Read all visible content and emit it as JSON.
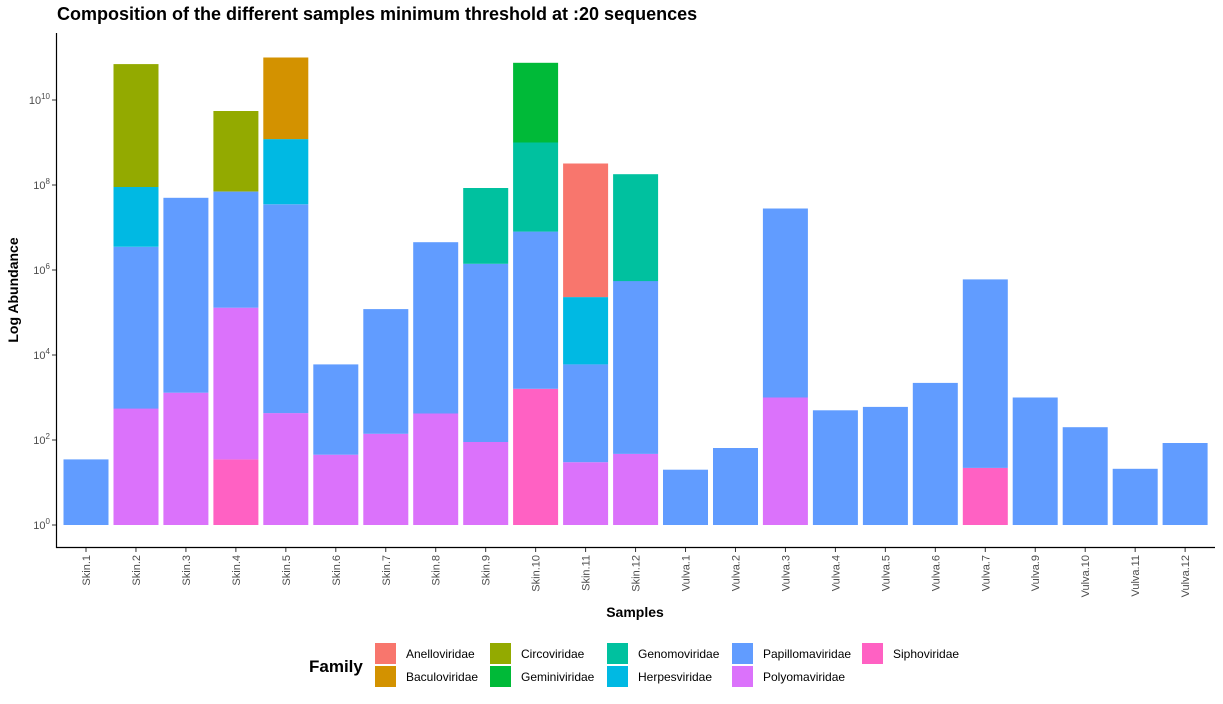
{
  "chart_data": {
    "type": "bar",
    "stacked": true,
    "title": "Composition of the different samples minimum threshold at :20 sequences",
    "xlabel": "Samples",
    "ylabel": "Log Abundance",
    "y_scale": "log10",
    "ylim": [
      1,
      20000000000
    ],
    "y_ticks": [
      {
        "base": "10",
        "exp": "0",
        "value": 1
      },
      {
        "base": "10",
        "exp": "2",
        "value": 100
      },
      {
        "base": "10",
        "exp": "4",
        "value": 10000
      },
      {
        "base": "10",
        "exp": "6",
        "value": 1000000
      },
      {
        "base": "10",
        "exp": "8",
        "value": 100000000
      },
      {
        "base": "10",
        "exp": "10",
        "value": 10000000000
      }
    ],
    "categories": [
      "Skin.1",
      "Skin.2",
      "Skin.3",
      "Skin.4",
      "Skin.5",
      "Skin.6",
      "Skin.7",
      "Skin.8",
      "Skin.9",
      "Skin.10",
      "Skin.11",
      "Skin.12",
      "Vulva.1",
      "Vulva.2",
      "Vulva.3",
      "Vulva.4",
      "Vulva.5",
      "Vulva.6",
      "Vulva.7",
      "Vulva.9",
      "Vulva.10",
      "Vulva.11",
      "Vulva.12"
    ],
    "legend_title": "Family",
    "legend_position": "bottom",
    "grid": false,
    "series": [
      {
        "name": "Anelloviridae",
        "color": "#F8766D"
      },
      {
        "name": "Baculoviridae",
        "color": "#D39200"
      },
      {
        "name": "Circoviridae",
        "color": "#93AA00"
      },
      {
        "name": "Geminiviridae",
        "color": "#00BA38"
      },
      {
        "name": "Genomoviridae",
        "color": "#00C19F"
      },
      {
        "name": "Herpesviridae",
        "color": "#00B9E3"
      },
      {
        "name": "Papillomaviridae",
        "color": "#619CFF"
      },
      {
        "name": "Polyomaviridae",
        "color": "#DB72FB"
      },
      {
        "name": "Siphoviridae",
        "color": "#FF61C3"
      }
    ],
    "stacks": [
      [
        {
          "family": "Papillomaviridae",
          "top": 35
        }
      ],
      [
        {
          "family": "Polyomaviridae",
          "top": 550
        },
        {
          "family": "Papillomaviridae",
          "top": 3500000
        },
        {
          "family": "Herpesviridae",
          "top": 90000000
        },
        {
          "family": "Circoviridae",
          "top": 70000000000
        }
      ],
      [
        {
          "family": "Polyomaviridae",
          "top": 1300
        },
        {
          "family": "Papillomaviridae",
          "top": 50000000
        }
      ],
      [
        {
          "family": "Siphoviridae",
          "top": 35
        },
        {
          "family": "Polyomaviridae",
          "top": 130000
        },
        {
          "family": "Papillomaviridae",
          "top": 70000000
        },
        {
          "family": "Circoviridae",
          "top": 5500000000
        }
      ],
      [
        {
          "family": "Polyomaviridae",
          "top": 430
        },
        {
          "family": "Papillomaviridae",
          "top": 35000000
        },
        {
          "family": "Herpesviridae",
          "top": 1200000000
        },
        {
          "family": "Baculoviridae",
          "top": 100000000000
        }
      ],
      [
        {
          "family": "Polyomaviridae",
          "top": 45
        },
        {
          "family": "Papillomaviridae",
          "top": 6000
        }
      ],
      [
        {
          "family": "Polyomaviridae",
          "top": 140
        },
        {
          "family": "Papillomaviridae",
          "top": 120000
        }
      ],
      [
        {
          "family": "Polyomaviridae",
          "top": 420
        },
        {
          "family": "Papillomaviridae",
          "top": 4500000
        }
      ],
      [
        {
          "family": "Polyomaviridae",
          "top": 90
        },
        {
          "family": "Papillomaviridae",
          "top": 1400000
        },
        {
          "family": "Genomoviridae",
          "top": 85000000
        }
      ],
      [
        {
          "family": "Siphoviridae",
          "top": 1600
        },
        {
          "family": "Papillomaviridae",
          "top": 8000000
        },
        {
          "family": "Genomoviridae",
          "top": 1000000000
        },
        {
          "family": "Geminiviridae",
          "top": 75000000000
        }
      ],
      [
        {
          "family": "Polyomaviridae",
          "top": 30
        },
        {
          "family": "Papillomaviridae",
          "top": 6000
        },
        {
          "family": "Herpesviridae",
          "top": 230000
        },
        {
          "family": "Anelloviridae",
          "top": 320000000
        }
      ],
      [
        {
          "family": "Polyomaviridae",
          "top": 47
        },
        {
          "family": "Papillomaviridae",
          "top": 550000
        },
        {
          "family": "Genomoviridae",
          "top": 180000000
        }
      ],
      [
        {
          "family": "Papillomaviridae",
          "top": 20
        }
      ],
      [
        {
          "family": "Papillomaviridae",
          "top": 65
        }
      ],
      [
        {
          "family": "Polyomaviridae",
          "top": 1000
        },
        {
          "family": "Papillomaviridae",
          "top": 28000000
        }
      ],
      [
        {
          "family": "Papillomaviridae",
          "top": 500
        }
      ],
      [
        {
          "family": "Papillomaviridae",
          "top": 600
        }
      ],
      [
        {
          "family": "Papillomaviridae",
          "top": 2200
        }
      ],
      [
        {
          "family": "Siphoviridae",
          "top": 22
        },
        {
          "family": "Papillomaviridae",
          "top": 600000
        }
      ],
      [
        {
          "family": "Papillomaviridae",
          "top": 1000
        }
      ],
      [
        {
          "family": "Papillomaviridae",
          "top": 200
        }
      ],
      [
        {
          "family": "Papillomaviridae",
          "top": 21
        }
      ],
      [
        {
          "family": "Papillomaviridae",
          "top": 85
        }
      ]
    ]
  }
}
